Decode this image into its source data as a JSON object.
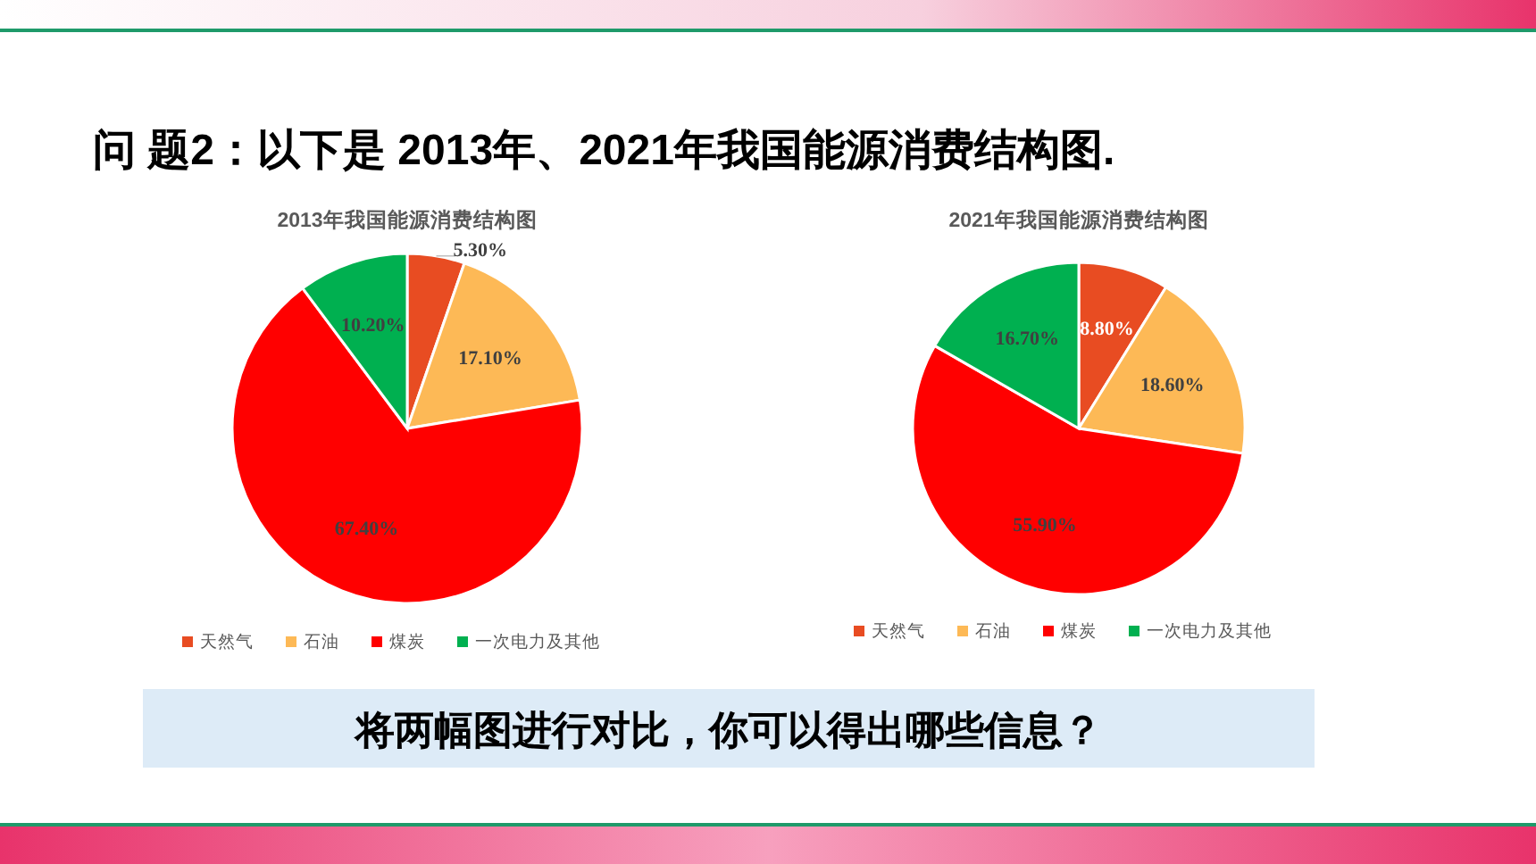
{
  "chart_data": [
    {
      "type": "pie",
      "title": "2013年我国能源消费结构图",
      "categories": [
        "天然气",
        "石油",
        "煤炭",
        "一次电力及其他"
      ],
      "values": [
        5.3,
        17.1,
        67.4,
        10.2
      ],
      "value_labels": [
        "5.30%",
        "17.10%",
        "67.40%",
        "10.20%"
      ],
      "colors": [
        "#e84c22",
        "#fdb956",
        "#ff0000",
        "#00b050"
      ],
      "legend": "bottom",
      "annotations": [
        "问 题2：以下是 2013年、2021年我国能源消费结构图.",
        "将两幅图进行对比，你可以得出哪些信息？"
      ]
    },
    {
      "type": "pie",
      "title": "2021年我国能源消费结构图",
      "categories": [
        "天然气",
        "石油",
        "煤炭",
        "一次电力及其他"
      ],
      "values": [
        8.8,
        18.6,
        55.9,
        16.7
      ],
      "value_labels": [
        "8.80%",
        "18.60%",
        "55.90%",
        "16.70%"
      ],
      "colors": [
        "#e84c22",
        "#fdb956",
        "#ff0000",
        "#00b050"
      ],
      "legend": "bottom"
    }
  ]
}
